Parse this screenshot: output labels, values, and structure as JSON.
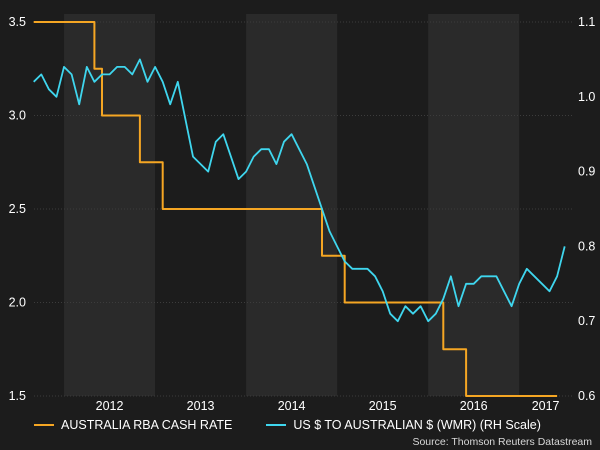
{
  "chart_data": {
    "type": "line",
    "x_ticks": [
      "2012",
      "2013",
      "2014",
      "2015",
      "2016",
      "2017"
    ],
    "left_axis": {
      "ticks": [
        "1.5",
        "2.0",
        "2.5",
        "3.0",
        "3.5"
      ],
      "ylim": [
        1.5,
        3.5
      ]
    },
    "right_axis": {
      "ticks": [
        "0.6",
        "0.7",
        "0.8",
        "0.9",
        "1.0",
        "1.1"
      ],
      "ylim": [
        0.6,
        1.1
      ]
    },
    "shaded_years": [
      "2012",
      "2014",
      "2016"
    ],
    "grid": true,
    "series": [
      {
        "name": "AUSTRALIA RBA CASH RATE",
        "axis": "left",
        "step": true,
        "color": "#f5a623",
        "points": [
          [
            "2011-09",
            3.5
          ],
          [
            "2012-05",
            3.25
          ],
          [
            "2012-06",
            3.0
          ],
          [
            "2012-11",
            2.75
          ],
          [
            "2013-02",
            2.5
          ],
          [
            "2014-09",
            2.5
          ],
          [
            "2014-11",
            2.25
          ],
          [
            "2015-02",
            2.0
          ],
          [
            "2015-10",
            2.0
          ],
          [
            "2016-01",
            2.0
          ],
          [
            "2016-03",
            1.75
          ],
          [
            "2016-06",
            1.5
          ],
          [
            "2017-06",
            1.5
          ]
        ]
      },
      {
        "name": "US $ TO AUSTRALIAN $ (WMR) (RH Scale)",
        "axis": "right",
        "color": "#3fd6ee",
        "points": [
          [
            "2011-09",
            1.02
          ],
          [
            "2011-10",
            1.03
          ],
          [
            "2011-11",
            1.01
          ],
          [
            "2011-12",
            1.0
          ],
          [
            "2012-01",
            1.04
          ],
          [
            "2012-02",
            1.03
          ],
          [
            "2012-03",
            0.99
          ],
          [
            "2012-04",
            1.04
          ],
          [
            "2012-05",
            1.02
          ],
          [
            "2012-06",
            1.03
          ],
          [
            "2012-07",
            1.03
          ],
          [
            "2012-08",
            1.04
          ],
          [
            "2012-09",
            1.04
          ],
          [
            "2012-10",
            1.03
          ],
          [
            "2012-11",
            1.05
          ],
          [
            "2012-12",
            1.02
          ],
          [
            "2013-01",
            1.04
          ],
          [
            "2013-02",
            1.02
          ],
          [
            "2013-03",
            0.99
          ],
          [
            "2013-04",
            1.02
          ],
          [
            "2013-05",
            0.97
          ],
          [
            "2013-06",
            0.92
          ],
          [
            "2013-07",
            0.91
          ],
          [
            "2013-08",
            0.9
          ],
          [
            "2013-09",
            0.94
          ],
          [
            "2013-10",
            0.95
          ],
          [
            "2013-11",
            0.92
          ],
          [
            "2013-12",
            0.89
          ],
          [
            "2014-01",
            0.9
          ],
          [
            "2014-02",
            0.92
          ],
          [
            "2014-03",
            0.93
          ],
          [
            "2014-04",
            0.93
          ],
          [
            "2014-05",
            0.91
          ],
          [
            "2014-06",
            0.94
          ],
          [
            "2014-07",
            0.95
          ],
          [
            "2014-08",
            0.93
          ],
          [
            "2014-09",
            0.91
          ],
          [
            "2014-10",
            0.88
          ],
          [
            "2014-11",
            0.85
          ],
          [
            "2014-12",
            0.82
          ],
          [
            "2015-01",
            0.8
          ],
          [
            "2015-02",
            0.78
          ],
          [
            "2015-03",
            0.77
          ],
          [
            "2015-04",
            0.77
          ],
          [
            "2015-05",
            0.77
          ],
          [
            "2015-06",
            0.76
          ],
          [
            "2015-07",
            0.74
          ],
          [
            "2015-08",
            0.71
          ],
          [
            "2015-09",
            0.7
          ],
          [
            "2015-10",
            0.72
          ],
          [
            "2015-11",
            0.71
          ],
          [
            "2015-12",
            0.72
          ],
          [
            "2016-01",
            0.7
          ],
          [
            "2016-02",
            0.71
          ],
          [
            "2016-03",
            0.73
          ],
          [
            "2016-04",
            0.76
          ],
          [
            "2016-05",
            0.72
          ],
          [
            "2016-06",
            0.75
          ],
          [
            "2016-07",
            0.75
          ],
          [
            "2016-08",
            0.76
          ],
          [
            "2016-09",
            0.76
          ],
          [
            "2016-10",
            0.76
          ],
          [
            "2016-11",
            0.74
          ],
          [
            "2016-12",
            0.72
          ],
          [
            "2017-01",
            0.75
          ],
          [
            "2017-02",
            0.77
          ],
          [
            "2017-03",
            0.76
          ],
          [
            "2017-04",
            0.75
          ],
          [
            "2017-05",
            0.74
          ],
          [
            "2017-06",
            0.76
          ],
          [
            "2017-07",
            0.8
          ]
        ]
      }
    ]
  },
  "legend": [
    {
      "label": "AUSTRALIA RBA CASH RATE",
      "color": "#f5a623"
    },
    {
      "label": "US $ TO AUSTRALIAN $ (WMR) (RH Scale)",
      "color": "#3fd6ee"
    }
  ],
  "source": "Source: Thomson Reuters Datastream"
}
